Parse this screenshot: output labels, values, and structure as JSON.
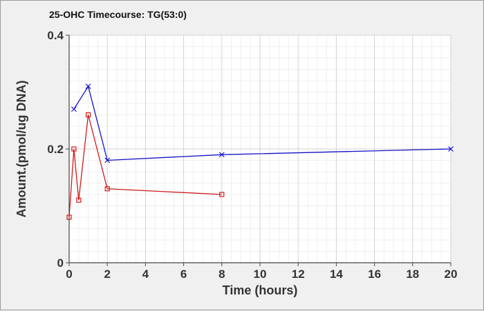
{
  "chart_data": {
    "type": "line",
    "title": "25-OHC Timecourse: TG(53:0)",
    "xlabel": "Time (hours)",
    "ylabel": "Amount.(pmol/ug DNA)",
    "xlim": [
      0,
      20
    ],
    "ylim": [
      0,
      0.4
    ],
    "x_ticks": [
      0,
      2,
      4,
      6,
      8,
      10,
      12,
      14,
      16,
      18,
      20
    ],
    "x_tick_labels": [
      "0",
      "2",
      "4",
      "6",
      "8",
      "10",
      "12",
      "14",
      "16",
      "18",
      "20"
    ],
    "y_ticks": [
      0,
      0.2,
      0.4
    ],
    "y_tick_labels": [
      "0",
      "0.2",
      "0.4"
    ],
    "grid": true,
    "legend": "none",
    "series": [
      {
        "color": "#1010c8",
        "marker": "x",
        "x": [
          0.25,
          1,
          2,
          8,
          20
        ],
        "y": [
          0.27,
          0.31,
          0.18,
          0.19,
          0.2
        ]
      },
      {
        "color": "#d01818",
        "marker": "square",
        "x": [
          0,
          0.25,
          0.5,
          1,
          2,
          8
        ],
        "y": [
          0.08,
          0.2,
          0.11,
          0.26,
          0.13,
          0.12
        ]
      }
    ]
  }
}
